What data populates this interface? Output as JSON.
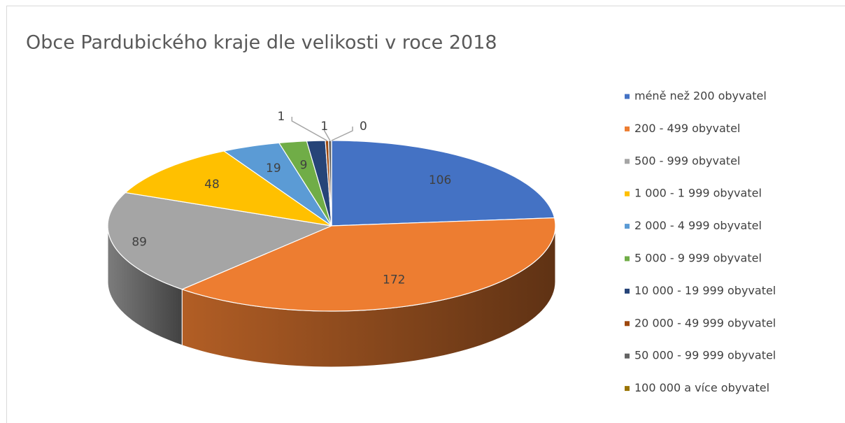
{
  "chart_data": {
    "type": "pie",
    "title": "Obce Pardubického kraje dle velikosti v roce 2018",
    "categories": [
      "méně než 200 obyvatel",
      "200 - 499 obyvatel",
      "500 - 999 obyvatel",
      "1 000 - 1 999 obyvatel",
      "2 000 - 4 999 obyvatel",
      "5 000 - 9 999 obyvatel",
      "10 000 - 19 999 obyvatel",
      "20 000 - 49 999 obyvatel",
      "50 000 - 99 999 obyvatel",
      "100 000 a více obyvatel"
    ],
    "values": [
      106,
      172,
      89,
      48,
      19,
      9,
      6,
      1,
      1,
      0
    ],
    "value_labels": [
      "106",
      "172",
      "89",
      "48",
      "19",
      "9",
      null,
      "1",
      "1",
      "0"
    ],
    "colors": [
      "#4472c4",
      "#ed7d31",
      "#a5a5a5",
      "#ffc000",
      "#5b9bd5",
      "#70ad47",
      "#264478",
      "#9e480e",
      "#636363",
      "#997300"
    ],
    "legend": "right"
  }
}
